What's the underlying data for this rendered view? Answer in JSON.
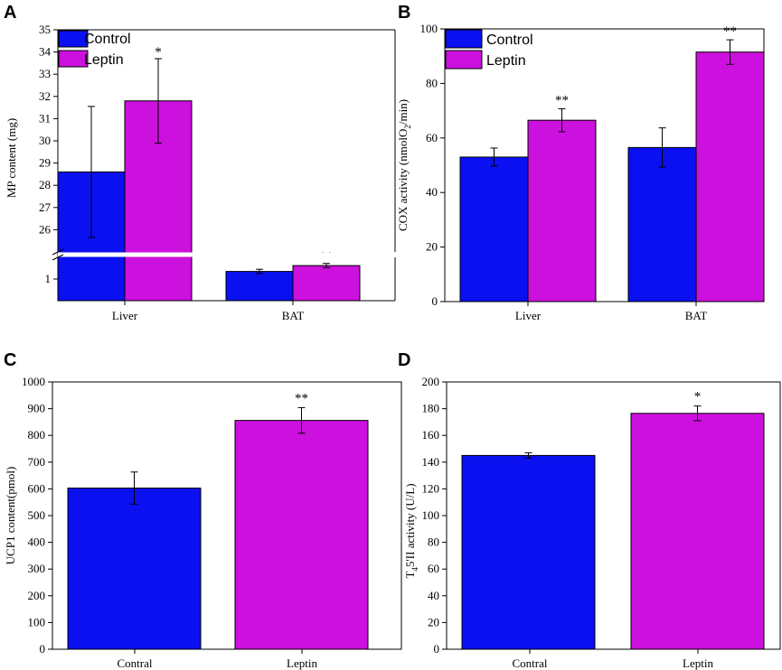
{
  "colors": {
    "control": "#0a10f0",
    "leptin": "#cc10dd"
  },
  "chart_data": [
    {
      "panel": "A",
      "type": "bar",
      "categories": [
        "Liver",
        "BAT"
      ],
      "ylabel": "MP content (mg)",
      "axis_break": true,
      "ylim_upper": [
        25,
        35
      ],
      "ylim_lower": [
        0,
        2
      ],
      "yticks_upper": [
        "26",
        "27",
        "28",
        "29",
        "30",
        "31",
        "32",
        "33",
        "34",
        "35"
      ],
      "yticks_lower": [
        "1"
      ],
      "legend": [
        "Control",
        "Leptin"
      ],
      "series": [
        {
          "name": "Control",
          "values": [
            28.6,
            1.35
          ],
          "errors": [
            2.95,
            0.1
          ],
          "sig": [
            "",
            ""
          ]
        },
        {
          "name": "Leptin",
          "values": [
            31.8,
            1.62
          ],
          "errors": [
            1.9,
            0.1
          ],
          "sig": [
            "*",
            "**"
          ]
        }
      ]
    },
    {
      "panel": "B",
      "type": "bar",
      "categories": [
        "Liver",
        "BAT"
      ],
      "ylabel": "COX activity (nmolO2/min)",
      "ylim": [
        0,
        100
      ],
      "yticks": [
        "0",
        "20",
        "40",
        "60",
        "80",
        "100"
      ],
      "legend": [
        "Control",
        "Leptin"
      ],
      "series": [
        {
          "name": "Control",
          "values": [
            53,
            56.5
          ],
          "errors": [
            3.3,
            7.2
          ],
          "sig": [
            "",
            ""
          ]
        },
        {
          "name": "Leptin",
          "values": [
            66.5,
            91.5
          ],
          "errors": [
            4.2,
            4.5
          ],
          "sig": [
            "**",
            "**"
          ]
        }
      ]
    },
    {
      "panel": "C",
      "type": "bar",
      "categories": [
        "Contral",
        "Leptin"
      ],
      "ylabel": "UCP1 content(pmol)",
      "ylim": [
        0,
        1000
      ],
      "yticks": [
        "0",
        "100",
        "200",
        "300",
        "400",
        "500",
        "600",
        "700",
        "800",
        "900",
        "1000"
      ],
      "values": [
        603,
        856
      ],
      "errors": [
        60,
        48
      ],
      "sig": [
        "",
        "**"
      ]
    },
    {
      "panel": "D",
      "type": "bar",
      "categories": [
        "Contral",
        "Leptin"
      ],
      "ylabel": "T45'II activity (U/L)",
      "ylim": [
        0,
        200
      ],
      "yticks": [
        "0",
        "20",
        "40",
        "60",
        "80",
        "100",
        "120",
        "140",
        "160",
        "180",
        "200"
      ],
      "values": [
        145,
        176.5
      ],
      "errors": [
        2,
        5.5
      ],
      "sig": [
        "",
        "*"
      ]
    }
  ]
}
